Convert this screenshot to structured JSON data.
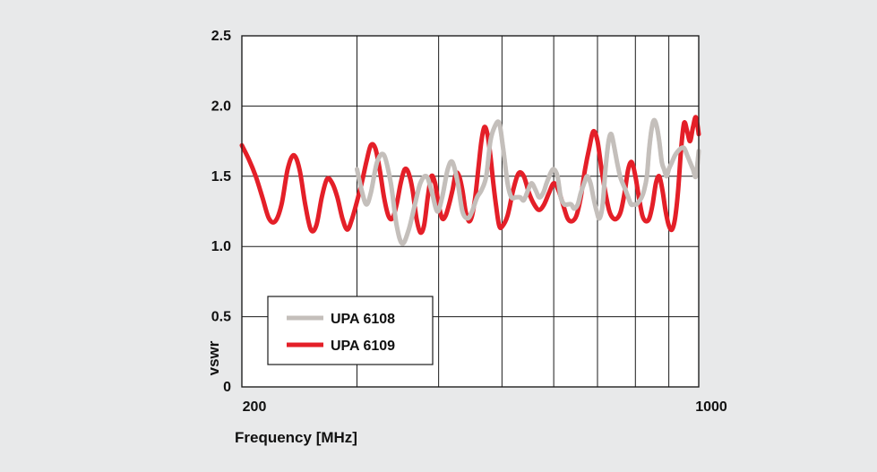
{
  "chart_data": {
    "type": "line",
    "xlabel": "Frequency [MHz]",
    "ylabel": "vswr",
    "x_scale": "log",
    "xlim": [
      200,
      1000
    ],
    "ylim": [
      0,
      2.5
    ],
    "x_tick_labels": [
      {
        "value": 200,
        "label": "200"
      },
      {
        "value": 1000,
        "label": "1000"
      }
    ],
    "x_gridlines": [
      200,
      300,
      400,
      500,
      600,
      700,
      800,
      900,
      1000
    ],
    "y_ticks": [
      {
        "value": 0,
        "label": "0"
      },
      {
        "value": 0.5,
        "label": "0.5"
      },
      {
        "value": 1.0,
        "label": "1.0"
      },
      {
        "value": 1.5,
        "label": "1.5"
      },
      {
        "value": 2.0,
        "label": "2.0"
      },
      {
        "value": 2.5,
        "label": "2.5"
      }
    ],
    "grid": true,
    "legend": "lower-left",
    "series": [
      {
        "name": "UPA 6108",
        "color": "#c4bfbb",
        "x": [
          300,
          305,
          310,
          315,
          322,
          330,
          338,
          345,
          352,
          360,
          368,
          375,
          383,
          390,
          398,
          405,
          413,
          420,
          428,
          435,
          443,
          450,
          458,
          465,
          473,
          480,
          487,
          495,
          502,
          510,
          517,
          525,
          533,
          540,
          548,
          555,
          563,
          570,
          578,
          585,
          593,
          600,
          608,
          615,
          623,
          630,
          638,
          645,
          653,
          660,
          668,
          675,
          683,
          690,
          698,
          705,
          713,
          720,
          728,
          735,
          743,
          750,
          758,
          765,
          773,
          780,
          788,
          795,
          803,
          810,
          818,
          825,
          833,
          840,
          848,
          855,
          863,
          870,
          878,
          885,
          893,
          900,
          910,
          920,
          930,
          940,
          950,
          960,
          970,
          980,
          990,
          1000
        ],
        "y": [
          1.55,
          1.4,
          1.3,
          1.38,
          1.6,
          1.65,
          1.45,
          1.15,
          1.02,
          1.12,
          1.3,
          1.45,
          1.5,
          1.4,
          1.25,
          1.35,
          1.55,
          1.6,
          1.45,
          1.25,
          1.2,
          1.25,
          1.35,
          1.4,
          1.5,
          1.75,
          1.85,
          1.88,
          1.7,
          1.45,
          1.35,
          1.35,
          1.35,
          1.33,
          1.4,
          1.45,
          1.4,
          1.35,
          1.38,
          1.45,
          1.52,
          1.55,
          1.5,
          1.35,
          1.3,
          1.3,
          1.3,
          1.27,
          1.3,
          1.38,
          1.45,
          1.5,
          1.45,
          1.35,
          1.25,
          1.2,
          1.3,
          1.55,
          1.75,
          1.8,
          1.7,
          1.6,
          1.5,
          1.45,
          1.4,
          1.35,
          1.3,
          1.3,
          1.3,
          1.32,
          1.35,
          1.4,
          1.5,
          1.7,
          1.85,
          1.9,
          1.85,
          1.75,
          1.6,
          1.55,
          1.5,
          1.55,
          1.6,
          1.65,
          1.68,
          1.7,
          1.7,
          1.65,
          1.6,
          1.55,
          1.5,
          1.68
        ]
      },
      {
        "name": "UPA 6109",
        "color": "#e41f28",
        "x": [
          200,
          205,
          210,
          215,
          220,
          225,
          230,
          235,
          240,
          245,
          250,
          255,
          260,
          265,
          270,
          275,
          280,
          285,
          290,
          295,
          300,
          305,
          310,
          315,
          320,
          325,
          330,
          335,
          340,
          345,
          350,
          355,
          360,
          365,
          370,
          375,
          380,
          385,
          390,
          395,
          400,
          405,
          410,
          415,
          420,
          425,
          430,
          435,
          440,
          445,
          450,
          455,
          460,
          465,
          470,
          475,
          480,
          485,
          490,
          495,
          500,
          510,
          520,
          530,
          540,
          550,
          560,
          570,
          580,
          590,
          600,
          610,
          620,
          630,
          640,
          650,
          660,
          670,
          680,
          690,
          700,
          710,
          720,
          730,
          740,
          750,
          760,
          770,
          780,
          790,
          800,
          810,
          820,
          830,
          840,
          850,
          860,
          870,
          880,
          890,
          900,
          910,
          920,
          930,
          940,
          950,
          960,
          970,
          980,
          990,
          1000
        ],
        "y": [
          1.72,
          1.62,
          1.5,
          1.35,
          1.2,
          1.18,
          1.3,
          1.55,
          1.65,
          1.55,
          1.3,
          1.12,
          1.15,
          1.35,
          1.48,
          1.45,
          1.35,
          1.2,
          1.12,
          1.2,
          1.32,
          1.45,
          1.6,
          1.72,
          1.7,
          1.55,
          1.35,
          1.22,
          1.2,
          1.3,
          1.45,
          1.55,
          1.52,
          1.4,
          1.2,
          1.1,
          1.15,
          1.35,
          1.5,
          1.45,
          1.3,
          1.2,
          1.22,
          1.3,
          1.4,
          1.52,
          1.5,
          1.4,
          1.25,
          1.18,
          1.22,
          1.35,
          1.55,
          1.75,
          1.85,
          1.8,
          1.65,
          1.45,
          1.28,
          1.15,
          1.14,
          1.22,
          1.4,
          1.52,
          1.5,
          1.38,
          1.3,
          1.26,
          1.3,
          1.38,
          1.45,
          1.4,
          1.3,
          1.2,
          1.18,
          1.22,
          1.35,
          1.55,
          1.7,
          1.82,
          1.75,
          1.55,
          1.38,
          1.25,
          1.2,
          1.2,
          1.25,
          1.38,
          1.55,
          1.6,
          1.5,
          1.35,
          1.22,
          1.18,
          1.2,
          1.3,
          1.45,
          1.5,
          1.4,
          1.25,
          1.15,
          1.12,
          1.2,
          1.4,
          1.7,
          1.88,
          1.82,
          1.75,
          1.85,
          1.92,
          1.8
        ]
      }
    ]
  }
}
